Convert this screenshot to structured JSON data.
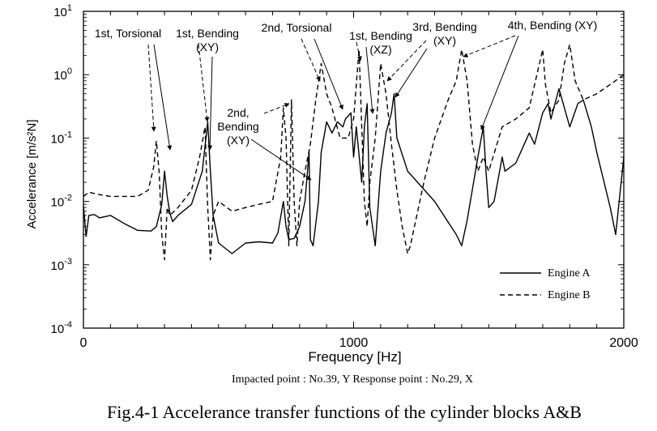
{
  "chart_data": {
    "type": "line",
    "xlabel": "Frequency [Hz]",
    "ylabel": "Accelerance [m/s²N]",
    "xlim": [
      0,
      2000
    ],
    "ylim": [
      0.0001,
      10
    ],
    "yscale": "log",
    "grid": false,
    "legend_position": "bottom-right",
    "x_ticks": [
      {
        "value": 0,
        "label": "0"
      },
      {
        "value": 1000,
        "label": "1000"
      },
      {
        "value": 2000,
        "label": "2000"
      }
    ],
    "y_ticks": [
      {
        "value": 10,
        "base": "10",
        "exp": "1"
      },
      {
        "value": 1,
        "base": "10",
        "exp": "0"
      },
      {
        "value": 0.1,
        "base": "10",
        "exp": "-1"
      },
      {
        "value": 0.01,
        "base": "10",
        "exp": "-2"
      },
      {
        "value": 0.001,
        "base": "10",
        "exp": "-3"
      },
      {
        "value": 0.0001,
        "base": "10",
        "exp": "-4"
      }
    ],
    "series": [
      {
        "name": "Engine A",
        "style": "solid",
        "color": "#000000",
        "x": [
          0,
          10,
          20,
          40,
          60,
          100,
          150,
          200,
          250,
          270,
          290,
          300,
          310,
          320,
          330,
          350,
          400,
          440,
          460,
          470,
          480,
          500,
          550,
          600,
          650,
          700,
          720,
          740,
          750,
          760,
          780,
          800,
          820,
          835,
          840,
          850,
          870,
          880,
          900,
          920,
          940,
          960,
          970,
          990,
          1000,
          1010,
          1030,
          1040,
          1050,
          1060,
          1080,
          1100,
          1120,
          1140,
          1150,
          1160,
          1200,
          1300,
          1380,
          1400,
          1420,
          1460,
          1480,
          1490,
          1500,
          1520,
          1550,
          1560,
          1600,
          1650,
          1670,
          1700,
          1720,
          1730,
          1760,
          1800,
          1830,
          1850,
          1880,
          1900,
          1950,
          1970,
          2000
        ],
        "y": [
          0.0085,
          0.0028,
          0.006,
          0.0062,
          0.0055,
          0.006,
          0.0045,
          0.0035,
          0.0034,
          0.004,
          0.009,
          0.03,
          0.012,
          0.0065,
          0.0048,
          0.006,
          0.009,
          0.03,
          0.18,
          0.03,
          0.006,
          0.0022,
          0.0015,
          0.0022,
          0.0023,
          0.0022,
          0.0032,
          0.01,
          0.004,
          0.0025,
          0.0026,
          0.004,
          0.01,
          0.06,
          0.0025,
          0.002,
          0.01,
          0.06,
          0.18,
          0.12,
          0.18,
          0.15,
          0.2,
          0.25,
          0.05,
          0.15,
          0.02,
          0.15,
          0.35,
          0.008,
          0.002,
          0.03,
          0.12,
          0.25,
          0.5,
          0.1,
          0.03,
          0.01,
          0.003,
          0.002,
          0.005,
          0.05,
          0.15,
          0.03,
          0.008,
          0.01,
          0.05,
          0.03,
          0.04,
          0.12,
          0.08,
          0.25,
          0.35,
          0.2,
          0.6,
          0.15,
          0.35,
          0.4,
          0.15,
          0.06,
          0.008,
          0.003,
          0.05
        ]
      },
      {
        "name": "Engine B",
        "style": "dashed",
        "color": "#000000",
        "x": [
          0,
          20,
          50,
          100,
          150,
          200,
          240,
          260,
          270,
          280,
          290,
          300,
          310,
          320,
          350,
          400,
          430,
          450,
          460,
          470,
          480,
          500,
          550,
          600,
          650,
          700,
          730,
          740,
          750,
          760,
          770,
          780,
          790,
          800,
          820,
          840,
          860,
          880,
          900,
          920,
          950,
          980,
          1000,
          1020,
          1040,
          1050,
          1060,
          1080,
          1100,
          1120,
          1140,
          1160,
          1180,
          1200,
          1210,
          1230,
          1260,
          1300,
          1350,
          1380,
          1400,
          1420,
          1440,
          1460,
          1480,
          1500,
          1550,
          1600,
          1650,
          1700,
          1710,
          1730,
          1760,
          1780,
          1800,
          1820,
          1850,
          1900,
          1950,
          2000
        ],
        "y": [
          0.012,
          0.014,
          0.013,
          0.012,
          0.012,
          0.012,
          0.015,
          0.035,
          0.09,
          0.03,
          0.003,
          0.0012,
          0.008,
          0.006,
          0.008,
          0.015,
          0.05,
          0.15,
          0.008,
          0.0012,
          0.006,
          0.01,
          0.007,
          0.008,
          0.009,
          0.01,
          0.05,
          0.3,
          0.1,
          0.002,
          0.4,
          0.01,
          0.002,
          0.01,
          0.03,
          0.08,
          0.4,
          1.5,
          0.5,
          0.3,
          0.1,
          0.1,
          0.2,
          2.5,
          0.01,
          0.004,
          0.02,
          0.1,
          1.5,
          0.5,
          0.08,
          0.015,
          0.004,
          0.0015,
          0.002,
          0.005,
          0.02,
          0.1,
          0.4,
          0.8,
          2.5,
          0.8,
          0.08,
          0.03,
          0.05,
          0.03,
          0.15,
          0.2,
          0.3,
          2.5,
          0.7,
          0.25,
          0.4,
          1.5,
          3,
          0.8,
          0.4,
          0.5,
          0.7,
          1
        ]
      }
    ],
    "annotations": [
      {
        "lines": [
          "1st, Torsional"
        ]
      },
      {
        "lines": [
          "1st, Bending",
          "(XY)"
        ]
      },
      {
        "lines": [
          "2nd,",
          "Bending",
          "(XY)"
        ]
      },
      {
        "lines": [
          "2nd, Torsional"
        ]
      },
      {
        "lines": [
          "1st, Bending",
          "(XZ)"
        ]
      },
      {
        "lines": [
          "3rd, Bending",
          "(XY)"
        ]
      },
      {
        "lines": [
          "4th, Bending (XY)"
        ]
      }
    ]
  },
  "caption": {
    "subcaption": "Impacted point : No.39, Y   Response point : No.29, X",
    "figure_caption": "Fig.4-1 Accelerance transfer functions of the cylinder blocks A&B"
  }
}
